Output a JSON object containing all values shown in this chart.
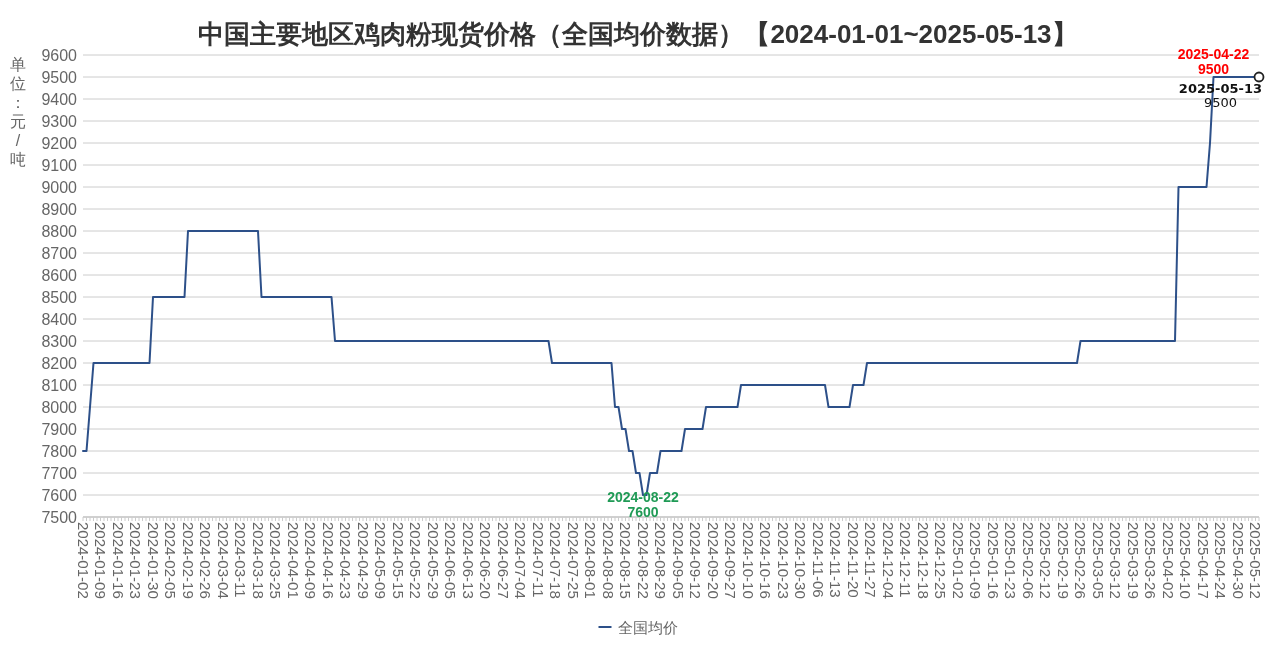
{
  "chart_data": {
    "type": "line",
    "title": "中国主要地区鸡肉粉现货价格（全国均价数据）【2024-01-01~2025-05-13】",
    "ylabel": "单位：元/吨",
    "categories": [
      "2024-01-02",
      null,
      null,
      null,
      null,
      "2024-01-09",
      null,
      null,
      null,
      null,
      "2024-01-16",
      null,
      null,
      null,
      null,
      "2024-01-23",
      null,
      null,
      null,
      null,
      "2024-01-30",
      null,
      null,
      null,
      null,
      "2024-02-05",
      null,
      null,
      null,
      null,
      "2024-02-19",
      null,
      null,
      null,
      null,
      "2024-02-26",
      null,
      null,
      null,
      null,
      "2024-03-04",
      null,
      null,
      null,
      null,
      "2024-03-11",
      null,
      null,
      null,
      null,
      "2024-03-18",
      null,
      null,
      null,
      null,
      "2024-03-25",
      null,
      null,
      null,
      null,
      "2024-04-01",
      null,
      null,
      null,
      null,
      "2024-04-09",
      null,
      null,
      null,
      null,
      "2024-04-16",
      null,
      null,
      null,
      null,
      "2024-04-23",
      null,
      null,
      null,
      null,
      "2024-04-29",
      null,
      null,
      null,
      null,
      "2024-05-09",
      null,
      null,
      null,
      null,
      "2024-05-15",
      null,
      null,
      null,
      null,
      "2024-05-22",
      null,
      null,
      null,
      null,
      "2024-05-29",
      null,
      null,
      null,
      null,
      "2024-06-05",
      null,
      null,
      null,
      null,
      "2024-06-13",
      null,
      null,
      null,
      null,
      "2024-06-20",
      null,
      null,
      null,
      null,
      "2024-06-27",
      null,
      null,
      null,
      null,
      "2024-07-04",
      null,
      null,
      null,
      null,
      "2024-07-11",
      null,
      null,
      null,
      null,
      "2024-07-18",
      null,
      null,
      null,
      null,
      "2024-07-25",
      null,
      null,
      null,
      null,
      "2024-08-01",
      null,
      null,
      null,
      null,
      "2024-08-08",
      null,
      null,
      null,
      null,
      "2024-08-15",
      null,
      null,
      null,
      null,
      "2024-08-22",
      null,
      null,
      null,
      null,
      "2024-08-29",
      null,
      null,
      null,
      null,
      "2024-09-05",
      null,
      null,
      null,
      null,
      "2024-09-12",
      null,
      null,
      null,
      null,
      "2024-09-20",
      null,
      null,
      null,
      null,
      "2024-09-27",
      null,
      null,
      null,
      null,
      "2024-10-10",
      null,
      null,
      null,
      null,
      "2024-10-16",
      null,
      null,
      null,
      null,
      "2024-10-23",
      null,
      null,
      null,
      null,
      "2024-10-30",
      null,
      null,
      null,
      null,
      "2024-11-06",
      null,
      null,
      null,
      null,
      "2024-11-13",
      null,
      null,
      null,
      null,
      "2024-11-20",
      null,
      null,
      null,
      null,
      "2024-11-27",
      null,
      null,
      null,
      null,
      "2024-12-04",
      null,
      null,
      null,
      null,
      "2024-12-11",
      null,
      null,
      null,
      null,
      "2024-12-18",
      null,
      null,
      null,
      null,
      "2024-12-25",
      null,
      null,
      null,
      null,
      "2025-01-02",
      null,
      null,
      null,
      null,
      "2025-01-09",
      null,
      null,
      null,
      null,
      "2025-01-16",
      null,
      null,
      null,
      null,
      "2025-01-23",
      null,
      null,
      null,
      null,
      "2025-02-06",
      null,
      null,
      null,
      null,
      "2025-02-12",
      null,
      null,
      null,
      null,
      "2025-02-19",
      null,
      null,
      null,
      null,
      "2025-02-26",
      null,
      null,
      null,
      null,
      "2025-03-05",
      null,
      null,
      null,
      null,
      "2025-03-12",
      null,
      null,
      null,
      null,
      "2025-03-19",
      null,
      null,
      null,
      null,
      "2025-03-26",
      null,
      null,
      null,
      null,
      "2025-04-02",
      null,
      null,
      null,
      null,
      "2025-04-10",
      null,
      null,
      null,
      null,
      "2025-04-17",
      null,
      null,
      null,
      null,
      "2025-04-24",
      null,
      null,
      null,
      null,
      "2025-04-30",
      null,
      null,
      null,
      null,
      "2025-05-12",
      null
    ],
    "series": [
      {
        "name": "全国均价",
        "color": "#2d5089",
        "values": [
          7800,
          7800,
          8000,
          8200,
          8200,
          8200,
          8200,
          8200,
          8200,
          8200,
          8200,
          8200,
          8200,
          8200,
          8200,
          8200,
          8200,
          8200,
          8200,
          8200,
          8500,
          8500,
          8500,
          8500,
          8500,
          8500,
          8500,
          8500,
          8500,
          8500,
          8800,
          8800,
          8800,
          8800,
          8800,
          8800,
          8800,
          8800,
          8800,
          8800,
          8800,
          8800,
          8800,
          8800,
          8800,
          8800,
          8800,
          8800,
          8800,
          8800,
          8800,
          8500,
          8500,
          8500,
          8500,
          8500,
          8500,
          8500,
          8500,
          8500,
          8500,
          8500,
          8500,
          8500,
          8500,
          8500,
          8500,
          8500,
          8500,
          8500,
          8500,
          8500,
          8300,
          8300,
          8300,
          8300,
          8300,
          8300,
          8300,
          8300,
          8300,
          8300,
          8300,
          8300,
          8300,
          8300,
          8300,
          8300,
          8300,
          8300,
          8300,
          8300,
          8300,
          8300,
          8300,
          8300,
          8300,
          8300,
          8300,
          8300,
          8300,
          8300,
          8300,
          8300,
          8300,
          8300,
          8300,
          8300,
          8300,
          8300,
          8300,
          8300,
          8300,
          8300,
          8300,
          8300,
          8300,
          8300,
          8300,
          8300,
          8300,
          8300,
          8300,
          8300,
          8300,
          8300,
          8300,
          8300,
          8300,
          8300,
          8300,
          8300,
          8300,
          8300,
          8200,
          8200,
          8200,
          8200,
          8200,
          8200,
          8200,
          8200,
          8200,
          8200,
          8200,
          8200,
          8200,
          8200,
          8200,
          8200,
          8200,
          8200,
          8000,
          8000,
          7900,
          7900,
          7800,
          7800,
          7700,
          7700,
          7600,
          7600,
          7700,
          7700,
          7700,
          7800,
          7800,
          7800,
          7800,
          7800,
          7800,
          7800,
          7900,
          7900,
          7900,
          7900,
          7900,
          7900,
          8000,
          8000,
          8000,
          8000,
          8000,
          8000,
          8000,
          8000,
          8000,
          8000,
          8100,
          8100,
          8100,
          8100,
          8100,
          8100,
          8100,
          8100,
          8100,
          8100,
          8100,
          8100,
          8100,
          8100,
          8100,
          8100,
          8100,
          8100,
          8100,
          8100,
          8100,
          8100,
          8100,
          8100,
          8100,
          8000,
          8000,
          8000,
          8000,
          8000,
          8000,
          8000,
          8100,
          8100,
          8100,
          8100,
          8200,
          8200,
          8200,
          8200,
          8200,
          8200,
          8200,
          8200,
          8200,
          8200,
          8200,
          8200,
          8200,
          8200,
          8200,
          8200,
          8200,
          8200,
          8200,
          8200,
          8200,
          8200,
          8200,
          8200,
          8200,
          8200,
          8200,
          8200,
          8200,
          8200,
          8200,
          8200,
          8200,
          8200,
          8200,
          8200,
          8200,
          8200,
          8200,
          8200,
          8200,
          8200,
          8200,
          8200,
          8200,
          8200,
          8200,
          8200,
          8200,
          8200,
          8200,
          8200,
          8200,
          8200,
          8200,
          8200,
          8200,
          8200,
          8200,
          8200,
          8200,
          8300,
          8300,
          8300,
          8300,
          8300,
          8300,
          8300,
          8300,
          8300,
          8300,
          8300,
          8300,
          8300,
          8300,
          8300,
          8300,
          8300,
          8300,
          8300,
          8300,
          8300,
          8300,
          8300,
          8300,
          8300,
          8300,
          8300,
          8300,
          9000,
          9000,
          9000,
          9000,
          9000,
          9000,
          9000,
          9000,
          9000,
          9200,
          9500,
          9500,
          9500,
          9500,
          9500,
          9500,
          9500,
          9500,
          9500,
          9500,
          9500,
          9500,
          9500,
          9500
        ]
      }
    ],
    "ylim": [
      7500,
      9600
    ],
    "yticks": [
      7500,
      7600,
      7700,
      7800,
      7900,
      8000,
      8100,
      8200,
      8300,
      8400,
      8500,
      8600,
      8700,
      8800,
      8900,
      9000,
      9100,
      9200,
      9300,
      9400,
      9500,
      9600
    ],
    "grid": "y",
    "legend": "bottom",
    "annotations": [
      {
        "text": "2025-04-22\n9500",
        "y": 9500
      },
      {
        "text": "**2025-05-13**\n9500",
        "y": 9500
      },
      {
        "text": "2024-08-22\n7600",
        "y": 7600
      }
    ]
  }
}
